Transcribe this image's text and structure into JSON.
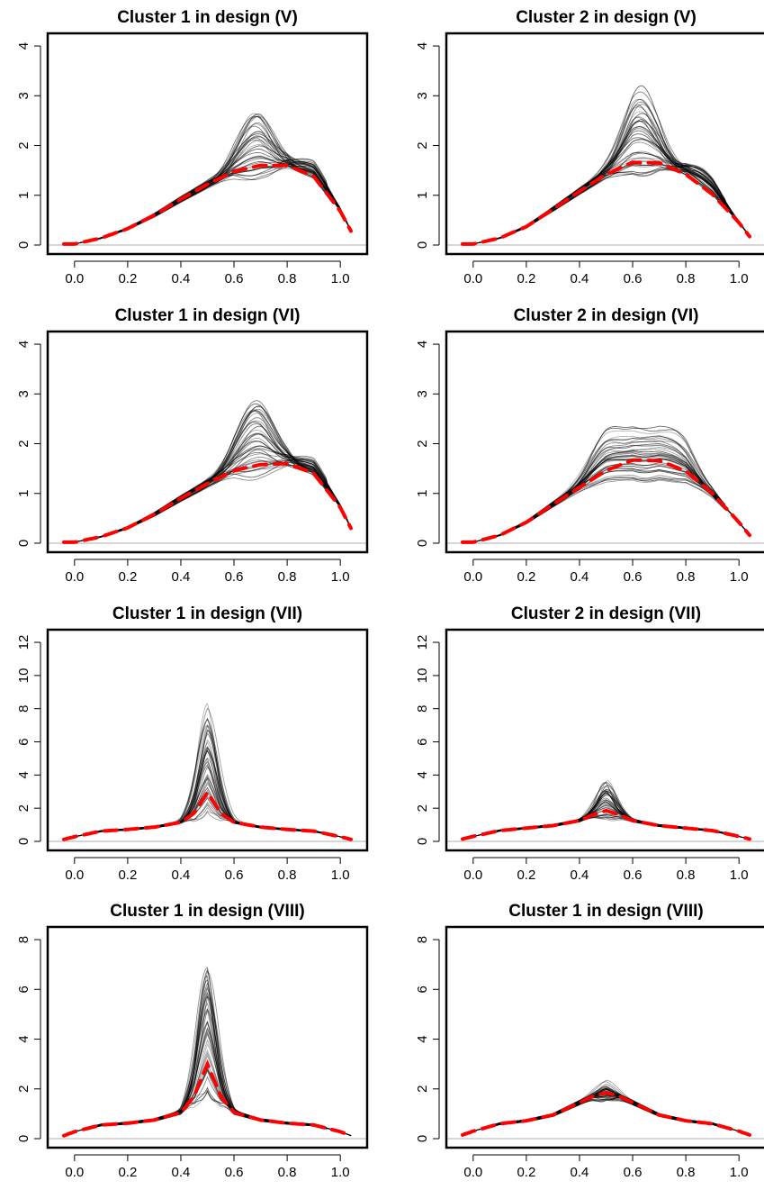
{
  "chart_data": [
    {
      "type": "line",
      "title": "Cluster 1 in design (V)",
      "xlabel": "",
      "ylabel": "",
      "xlim": [
        -0.04,
        1.04
      ],
      "ylim": [
        0,
        4.2
      ],
      "xticks": [
        "0.0",
        "0.2",
        "0.4",
        "0.6",
        "0.8",
        "1.0"
      ],
      "yticks": [
        "0",
        "1",
        "2",
        "3",
        "4"
      ],
      "grid": false,
      "series": [
        {
          "role": "mean",
          "style": "red-dashed",
          "x": [
            0,
            0.1,
            0.2,
            0.3,
            0.4,
            0.5,
            0.6,
            0.7,
            0.8,
            0.9,
            1.0,
            1.04
          ],
          "y": [
            0.02,
            0.14,
            0.33,
            0.6,
            0.92,
            1.22,
            1.48,
            1.6,
            1.6,
            1.38,
            0.68,
            0.28
          ]
        },
        {
          "role": "sample",
          "style": "grey-thin",
          "count": 40,
          "peak_x": 0.68,
          "peak_y_range": [
            1.3,
            2.75
          ],
          "second_peak_x": 0.9,
          "second_peak_y_range": [
            1.4,
            1.62
          ]
        }
      ]
    },
    {
      "type": "line",
      "title": "Cluster 2 in design (V)",
      "xlabel": "",
      "ylabel": "",
      "xlim": [
        -0.04,
        1.04
      ],
      "ylim": [
        0,
        4.2
      ],
      "xticks": [
        "0.0",
        "0.2",
        "0.4",
        "0.6",
        "0.8",
        "1.0"
      ],
      "yticks": [
        "0",
        "1",
        "2",
        "3",
        "4"
      ],
      "grid": false,
      "series": [
        {
          "role": "mean",
          "style": "red-dashed",
          "x": [
            0,
            0.1,
            0.2,
            0.3,
            0.4,
            0.5,
            0.6,
            0.7,
            0.8,
            0.9,
            1.0,
            1.04
          ],
          "y": [
            0.02,
            0.14,
            0.37,
            0.72,
            1.08,
            1.42,
            1.66,
            1.65,
            1.42,
            1.02,
            0.45,
            0.17
          ]
        },
        {
          "role": "sample",
          "style": "grey-thin",
          "count": 40,
          "peak_x": 0.63,
          "peak_y_range": [
            1.35,
            3.05
          ],
          "second_peak_x": 0.87,
          "second_peak_y_range": [
            1.15,
            1.48
          ]
        }
      ]
    },
    {
      "type": "line",
      "title": "Cluster 1 in design (VI)",
      "xlabel": "",
      "ylabel": "",
      "xlim": [
        -0.04,
        1.04
      ],
      "ylim": [
        0,
        4.2
      ],
      "xticks": [
        "0.0",
        "0.2",
        "0.4",
        "0.6",
        "0.8",
        "1.0"
      ],
      "yticks": [
        "0",
        "1",
        "2",
        "3",
        "4"
      ],
      "grid": false,
      "series": [
        {
          "role": "mean",
          "style": "red-dashed",
          "x": [
            0,
            0.1,
            0.2,
            0.3,
            0.4,
            0.5,
            0.6,
            0.7,
            0.8,
            0.9,
            1.0,
            1.04
          ],
          "y": [
            0.02,
            0.13,
            0.31,
            0.58,
            0.9,
            1.2,
            1.46,
            1.58,
            1.6,
            1.4,
            0.72,
            0.3
          ]
        },
        {
          "role": "sample",
          "style": "grey-thin",
          "count": 40,
          "peak_x": 0.68,
          "peak_y_range": [
            1.3,
            2.85
          ],
          "second_peak_x": 0.9,
          "second_peak_y_range": [
            1.4,
            1.62
          ]
        }
      ]
    },
    {
      "type": "line",
      "title": "Cluster 2 in design (VI)",
      "xlabel": "",
      "ylabel": "",
      "xlim": [
        -0.04,
        1.04
      ],
      "ylim": [
        0,
        4.2
      ],
      "xticks": [
        "0.0",
        "0.2",
        "0.4",
        "0.6",
        "0.8",
        "1.0"
      ],
      "yticks": [
        "0",
        "1",
        "2",
        "3",
        "4"
      ],
      "grid": false,
      "series": [
        {
          "role": "mean",
          "style": "red-dashed",
          "x": [
            0,
            0.1,
            0.2,
            0.3,
            0.4,
            0.5,
            0.6,
            0.7,
            0.8,
            0.9,
            1.0,
            1.04
          ],
          "y": [
            0.02,
            0.16,
            0.42,
            0.78,
            1.12,
            1.46,
            1.67,
            1.66,
            1.45,
            1.0,
            0.42,
            0.16
          ]
        },
        {
          "role": "sample",
          "style": "grey-thin",
          "count": 40,
          "peak_x": [
            0.5,
            0.63,
            0.76
          ],
          "peak_y_range": [
            1.3,
            2.1
          ]
        }
      ]
    },
    {
      "type": "line",
      "title": "Cluster 1 in design (VII)",
      "xlabel": "",
      "ylabel": "",
      "xlim": [
        -0.04,
        1.04
      ],
      "ylim": [
        0,
        12.6
      ],
      "xticks": [
        "0.0",
        "0.2",
        "0.4",
        "0.6",
        "0.8",
        "1.0"
      ],
      "yticks": [
        "0",
        "2",
        "4",
        "6",
        "8",
        "10",
        "12"
      ],
      "grid": false,
      "series": [
        {
          "role": "mean",
          "style": "red-dashed",
          "x": [
            -0.04,
            0,
            0.1,
            0.2,
            0.3,
            0.4,
            0.45,
            0.5,
            0.55,
            0.6,
            0.7,
            0.8,
            0.9,
            1.0,
            1.04
          ],
          "y": [
            0.12,
            0.28,
            0.62,
            0.72,
            0.86,
            1.15,
            1.7,
            2.95,
            1.7,
            1.15,
            0.86,
            0.72,
            0.62,
            0.28,
            0.12
          ]
        },
        {
          "role": "sample",
          "style": "grey-thin",
          "count": 40,
          "peak_x": 0.5,
          "peak_y_range": [
            1.6,
            7.8
          ]
        }
      ]
    },
    {
      "type": "line",
      "title": "Cluster 2 in design (VII)",
      "xlabel": "",
      "ylabel": "",
      "xlim": [
        -0.04,
        1.04
      ],
      "ylim": [
        0,
        12.6
      ],
      "xticks": [
        "0.0",
        "0.2",
        "0.4",
        "0.6",
        "0.8",
        "1.0"
      ],
      "yticks": [
        "0",
        "2",
        "4",
        "6",
        "8",
        "10",
        "12"
      ],
      "grid": false,
      "series": [
        {
          "role": "mean",
          "style": "red-dashed",
          "x": [
            -0.04,
            0,
            0.1,
            0.2,
            0.3,
            0.4,
            0.45,
            0.5,
            0.55,
            0.6,
            0.7,
            0.8,
            0.9,
            1.0,
            1.04
          ],
          "y": [
            0.14,
            0.3,
            0.65,
            0.8,
            0.95,
            1.25,
            1.6,
            1.85,
            1.6,
            1.25,
            0.95,
            0.8,
            0.65,
            0.3,
            0.14
          ]
        },
        {
          "role": "sample",
          "style": "grey-thin",
          "count": 40,
          "peak_x": 0.5,
          "peak_y_range": [
            1.3,
            3.5
          ]
        }
      ]
    },
    {
      "type": "line",
      "title": "Cluster 1 in design (VIII)",
      "xlabel": "",
      "ylabel": "",
      "xlim": [
        -0.04,
        1.04
      ],
      "ylim": [
        0,
        8.4
      ],
      "xticks": [
        "0.0",
        "0.2",
        "0.4",
        "0.6",
        "0.8",
        "1.0"
      ],
      "yticks": [
        "0",
        "2",
        "4",
        "6",
        "8"
      ],
      "grid": false,
      "series": [
        {
          "role": "mean",
          "style": "red-dashed",
          "x": [
            -0.04,
            0,
            0.1,
            0.2,
            0.3,
            0.4,
            0.45,
            0.5,
            0.55,
            0.6,
            0.7,
            0.8,
            0.9,
            1.0,
            1.04
          ],
          "y": [
            0.12,
            0.28,
            0.55,
            0.62,
            0.75,
            1.05,
            1.7,
            3.0,
            1.7,
            1.05,
            0.75,
            0.62,
            0.55,
            0.28,
            0.12
          ]
        },
        {
          "role": "sample",
          "style": "grey-thin",
          "count": 40,
          "peak_x": 0.5,
          "peak_y_range": [
            1.7,
            7.0
          ]
        }
      ]
    },
    {
      "type": "line",
      "title": "Cluster 1 in design (VIII)",
      "xlabel": "",
      "ylabel": "",
      "xlim": [
        -0.04,
        1.04
      ],
      "ylim": [
        0,
        8.4
      ],
      "xticks": [
        "0.0",
        "0.2",
        "0.4",
        "0.6",
        "0.8",
        "1.0"
      ],
      "yticks": [
        "0",
        "2",
        "4",
        "6",
        "8"
      ],
      "grid": false,
      "series": [
        {
          "role": "mean",
          "style": "red-dashed",
          "x": [
            -0.04,
            0,
            0.1,
            0.2,
            0.3,
            0.4,
            0.45,
            0.5,
            0.55,
            0.6,
            0.7,
            0.8,
            0.9,
            1.0,
            1.04
          ],
          "y": [
            0.15,
            0.3,
            0.6,
            0.72,
            0.95,
            1.45,
            1.7,
            1.85,
            1.7,
            1.45,
            0.95,
            0.72,
            0.6,
            0.3,
            0.15
          ]
        },
        {
          "role": "sample",
          "style": "grey-thin",
          "count": 40,
          "peak_x": 0.5,
          "peak_y_range": [
            1.5,
            2.2
          ]
        }
      ]
    }
  ]
}
